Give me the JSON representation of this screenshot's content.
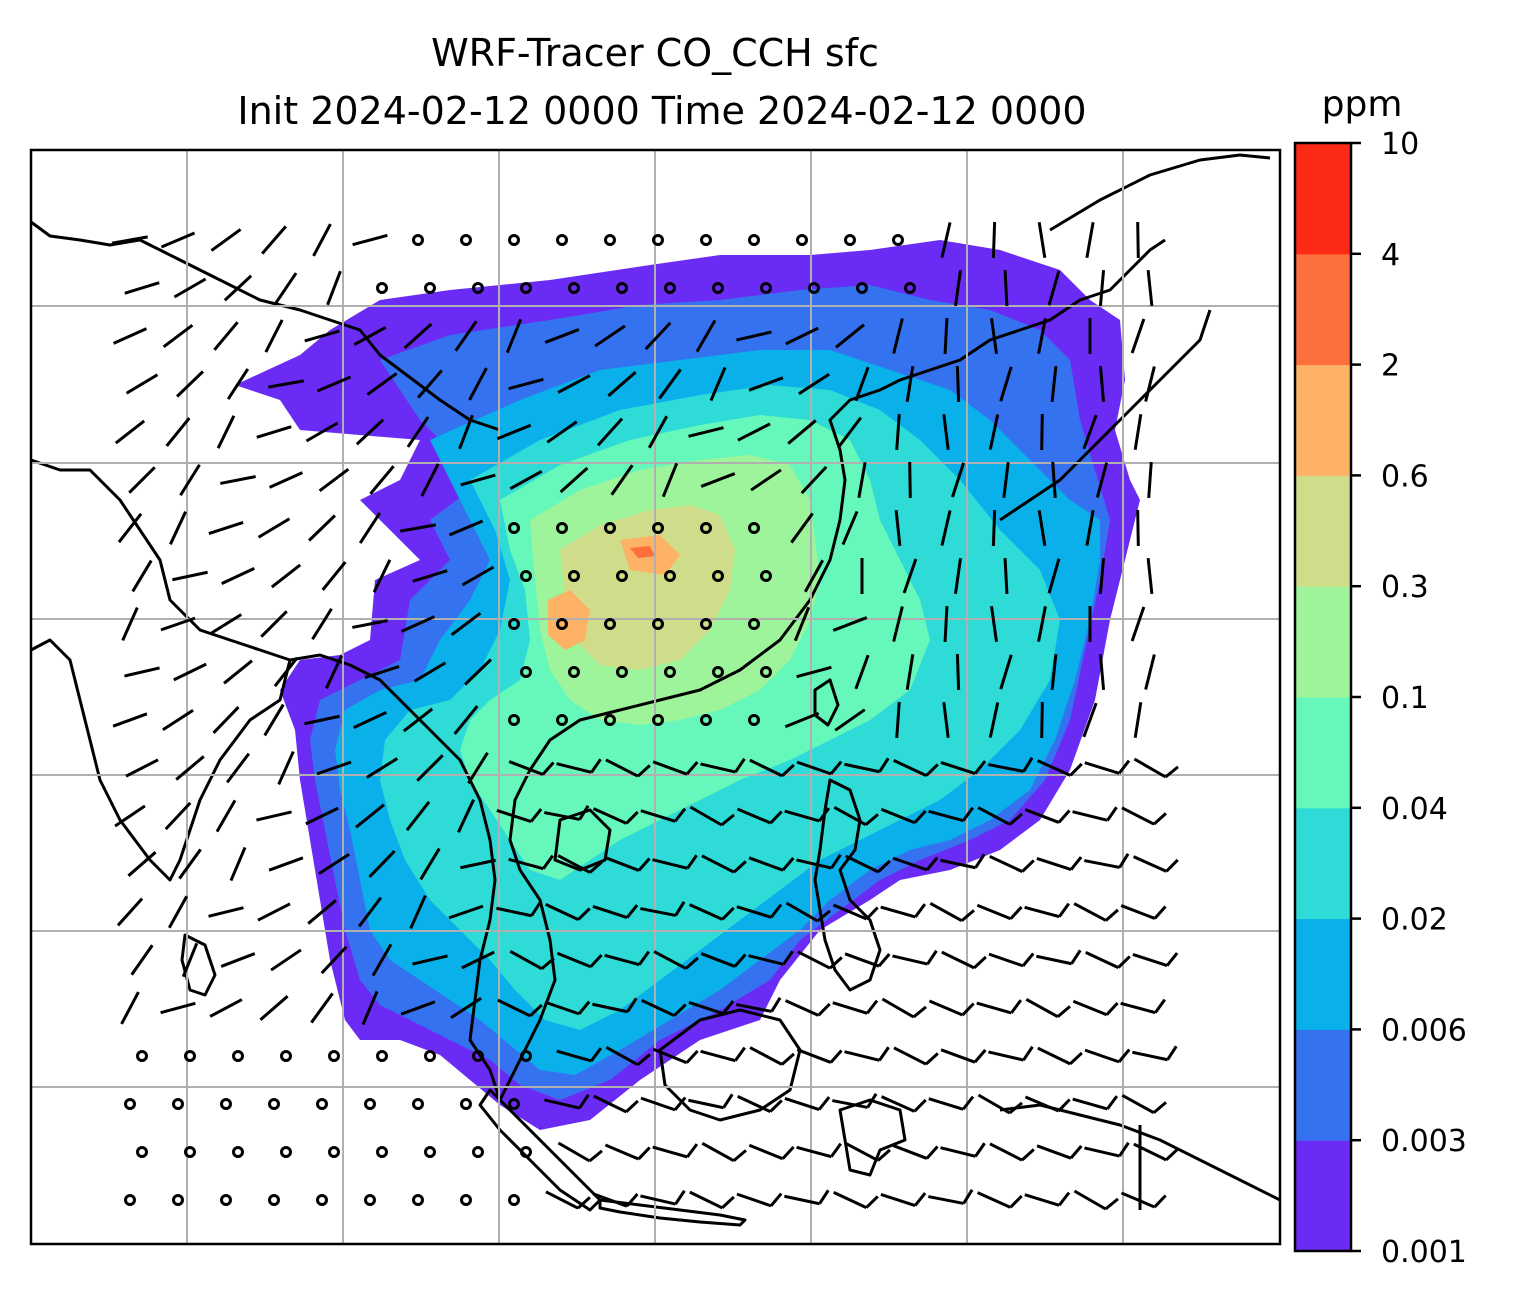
{
  "figure": {
    "title_line1": "WRF-Tracer CO_CCH sfc",
    "title_line2": "Init 2024-02-12 0000 Time 2024-02-12 0000"
  },
  "colorbar": {
    "unit": "ppm",
    "levels": [
      "0.001",
      "0.003",
      "0.006",
      "0.02",
      "0.04",
      "0.1",
      "0.3",
      "0.6",
      "2",
      "4",
      "10"
    ],
    "colors": [
      "#6a2cf5",
      "#3572f0",
      "#09b0ea",
      "#2edbd6",
      "#66f8bb",
      "#9df49a",
      "#cfdd8a",
      "#fdb265",
      "#fe6f3e",
      "#fd2a18"
    ]
  },
  "chart_data": {
    "type": "heatmap",
    "field": "CO_CCH surface concentration with wind barbs",
    "unit": "ppm",
    "levels": [
      0.001,
      0.003,
      0.006,
      0.02,
      0.04,
      0.1,
      0.3,
      0.6,
      2,
      4,
      10
    ],
    "region": "South and East Asia, Maritime Southeast Asia",
    "max_concentration_category": "0.6 - 2 ppm over south-central China",
    "grid": "on",
    "barbs": "calm circles over land interior, 10-20 kt northeasterly barbs over South China Sea"
  }
}
